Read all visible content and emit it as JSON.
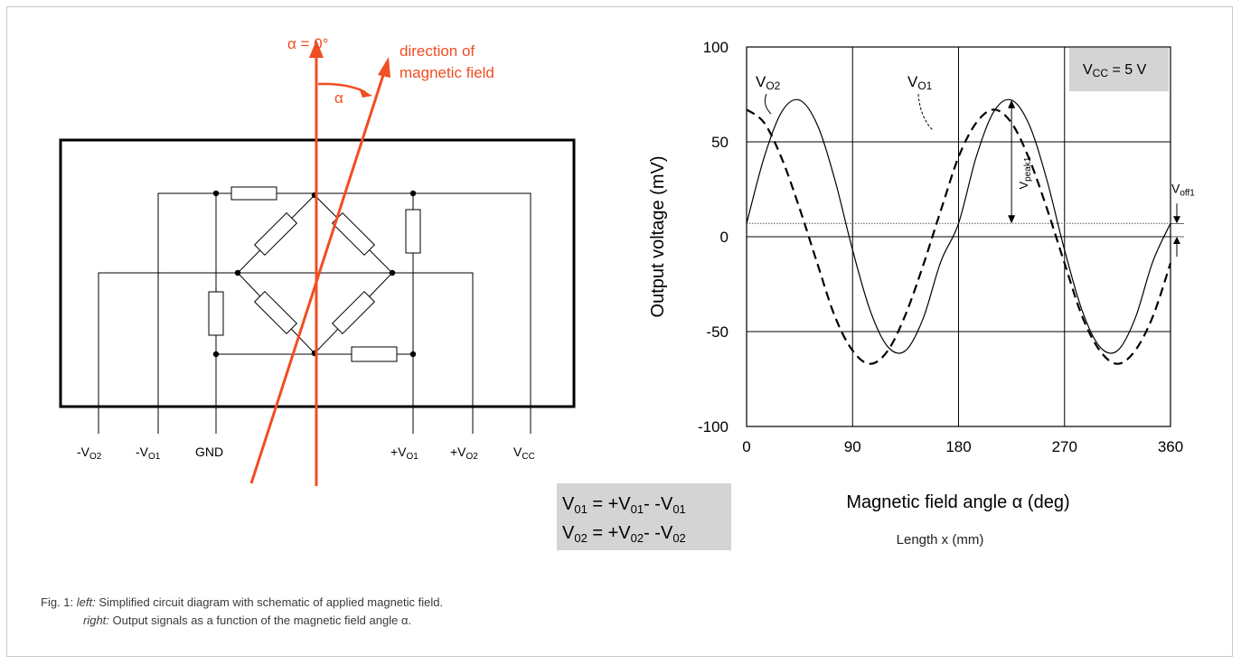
{
  "figure": {
    "alpha_zero_label": "α = 0°",
    "direction_label_1": "direction of",
    "direction_label_2": "magnetic field",
    "alpha_label": "α",
    "accent_color": "#f04e23",
    "pins": [
      {
        "sign": "-V",
        "sub": "O2"
      },
      {
        "sign": "-V",
        "sub": "O1"
      },
      {
        "sign": "GND",
        "sub": ""
      },
      {
        "sign": "+V",
        "sub": "O1"
      },
      {
        "sign": "+V",
        "sub": "O2"
      },
      {
        "sign": "V",
        "sub": "CC"
      }
    ],
    "equations": [
      {
        "lhs": "V",
        "lhs_sub": "01",
        "mid": " = +V",
        "mid_sub": "01",
        "rhs": "- -V",
        "rhs_sub": "01"
      },
      {
        "lhs": "V",
        "lhs_sub": "02",
        "mid": " = +V",
        "mid_sub": "02",
        "rhs": "- -V",
        "rhs_sub": "02"
      }
    ],
    "equation_box_color": "#d4d4d4"
  },
  "chart_data": {
    "type": "line",
    "xlabel": "Magnetic field angle α (deg)",
    "xlabel_sub": "Length x (mm)",
    "ylabel": "Output voltage (mV)",
    "xlim": [
      0,
      360
    ],
    "ylim": [
      -100,
      100
    ],
    "x_ticks": [
      0,
      90,
      180,
      270,
      360
    ],
    "y_ticks": [
      100,
      50,
      0,
      -50,
      -100
    ],
    "grid": true,
    "offset_level": 7,
    "x": [
      0,
      15,
      30,
      45,
      60,
      75,
      90,
      105,
      120,
      135,
      150,
      165,
      180,
      195,
      210,
      225,
      240,
      255,
      270,
      285,
      300,
      315,
      330,
      345,
      360
    ],
    "series": [
      {
        "name_main": "V",
        "name_sub": "O1",
        "style": "dashed",
        "values": [
          67,
          60,
          41,
          15,
          -14,
          -42,
          -60,
          -67,
          -60,
          -41,
          -15,
          14,
          42,
          60,
          67,
          60,
          41,
          15,
          -14,
          -42,
          -60,
          -67,
          -60,
          -42,
          -14
        ]
      },
      {
        "name_main": "V",
        "name_sub": "O2",
        "style": "solid",
        "values": [
          7,
          42,
          66,
          72,
          59,
          30,
          -7,
          -39,
          -58,
          -60,
          -43,
          -13,
          7,
          42,
          66,
          72,
          59,
          30,
          -7,
          -39,
          -58,
          -60,
          -43,
          -13,
          7
        ]
      }
    ],
    "annotations": {
      "vcc_box": {
        "main": "V",
        "sub": "CC",
        "text": " = 5 V"
      },
      "vpeak": {
        "main": "V",
        "sub": "peak1"
      },
      "voff": {
        "main": "V",
        "sub": "off1"
      }
    }
  },
  "caption": {
    "line1_prefix": "Fig. 1: ",
    "line1_label": "left:",
    "line1_text": " Simplified circuit diagram with schematic of applied magnetic field.",
    "line2_label": "right:",
    "line2_text": " Output signals as a function of the magnetic field angle α."
  }
}
